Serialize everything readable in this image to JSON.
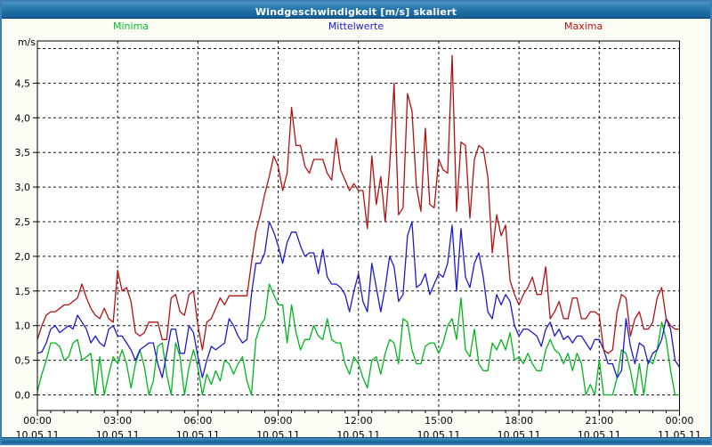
{
  "window": {
    "title": "Windgeschwindigkeit [m/s] skaliert"
  },
  "legend": [
    {
      "label": "Minima",
      "color": "#00c22a"
    },
    {
      "label": "Mittelwerte",
      "color": "#1a1acc"
    },
    {
      "label": "Maxima",
      "color": "#b31212"
    }
  ],
  "axes": {
    "unit_label": "m/s",
    "y_ticks": [
      "0,0",
      "0,5",
      "1,0",
      "1,5",
      "2,0",
      "2,5",
      "3,0",
      "3,5",
      "4,0",
      "4,5"
    ],
    "x_ticks": [
      {
        "time": "00:00",
        "date": "10.05.11"
      },
      {
        "time": "03:00",
        "date": "10.05.11"
      },
      {
        "time": "06:00",
        "date": "10.05.11"
      },
      {
        "time": "09:00",
        "date": "10.05.11"
      },
      {
        "time": "12:00",
        "date": "10.05.11"
      },
      {
        "time": "15:00",
        "date": "10.05.11"
      },
      {
        "time": "18:00",
        "date": "10.05.11"
      },
      {
        "time": "21:00",
        "date": "10.05.11"
      },
      {
        "time": "00:00",
        "date": "11.05.11"
      }
    ]
  },
  "chart_data": {
    "type": "line",
    "title": "Windgeschwindigkeit [m/s] skaliert",
    "ylabel": "m/s",
    "ylim": [
      0,
      5
    ],
    "grid": true,
    "legend_position": "top",
    "x_start": "10.05.11 00:00",
    "x_end": "11.05.11 00:00",
    "x_interval_minutes": 10,
    "x_major_tick_hours": 3,
    "x_minor_tick_minutes": 30,
    "series": [
      {
        "name": "Minima",
        "color": "#00b51e",
        "values": [
          0.05,
          0.3,
          0.5,
          0.75,
          0.75,
          0.7,
          0.5,
          0.55,
          0.75,
          0.8,
          0.5,
          0.55,
          0.6,
          0.0,
          0.55,
          0.0,
          0.3,
          0.55,
          0.45,
          0.65,
          0.45,
          0.1,
          0.45,
          0.65,
          0.4,
          0.0,
          0.2,
          0.7,
          0.75,
          0.3,
          0.0,
          0.75,
          0.55,
          0.0,
          0.4,
          0.65,
          0.4,
          0.0,
          0.3,
          0.15,
          0.35,
          0.2,
          0.5,
          0.45,
          0.3,
          0.45,
          0.55,
          0.2,
          0.0,
          0.8,
          1.0,
          1.1,
          1.6,
          1.45,
          1.3,
          1.3,
          0.75,
          1.3,
          0.9,
          0.65,
          0.8,
          0.8,
          1.0,
          0.85,
          0.8,
          1.1,
          0.8,
          0.75,
          0.75,
          0.45,
          0.3,
          0.55,
          0.45,
          0.25,
          0.1,
          0.5,
          0.55,
          0.3,
          0.6,
          0.8,
          0.75,
          0.45,
          1.1,
          1.05,
          0.65,
          0.45,
          0.45,
          0.7,
          0.75,
          0.75,
          0.6,
          0.75,
          1.0,
          1.1,
          0.8,
          1.4,
          0.65,
          0.55,
          0.95,
          0.45,
          0.35,
          0.35,
          0.75,
          0.65,
          0.8,
          0.65,
          0.9,
          0.5,
          0.55,
          0.45,
          0.6,
          0.45,
          0.35,
          0.35,
          0.65,
          0.8,
          0.65,
          0.6,
          0.45,
          0.6,
          0.35,
          0.6,
          0.45,
          0.0,
          0.15,
          0.0,
          0.5,
          0.0,
          0.0,
          0.0,
          0.25,
          0.65,
          0.6,
          0.35,
          0.0,
          0.45,
          0.0,
          0.5,
          0.45,
          0.65,
          1.05,
          0.8,
          0.35,
          0.0,
          0.0
        ]
      },
      {
        "name": "Mittelwerte",
        "color": "#1a1acc",
        "values": [
          0.6,
          0.62,
          0.75,
          0.95,
          1.0,
          0.9,
          0.95,
          1.0,
          0.95,
          1.15,
          1.05,
          0.95,
          0.75,
          0.85,
          0.75,
          0.7,
          0.95,
          1.0,
          0.85,
          0.85,
          0.75,
          0.65,
          0.5,
          0.65,
          0.7,
          0.75,
          0.75,
          0.45,
          0.25,
          0.6,
          0.95,
          0.95,
          0.6,
          0.6,
          1.0,
          0.9,
          0.55,
          0.25,
          0.5,
          0.7,
          0.65,
          0.7,
          0.75,
          1.1,
          1.0,
          0.85,
          0.75,
          0.8,
          1.45,
          1.9,
          1.9,
          2.05,
          2.5,
          2.35,
          2.15,
          1.9,
          2.2,
          2.35,
          2.35,
          2.15,
          2.0,
          2.05,
          2.05,
          1.75,
          2.1,
          1.7,
          1.6,
          1.6,
          1.55,
          1.45,
          1.2,
          1.5,
          1.75,
          1.35,
          1.2,
          1.9,
          1.55,
          1.2,
          1.55,
          2.0,
          1.85,
          1.35,
          1.45,
          2.3,
          2.5,
          1.55,
          1.6,
          1.75,
          1.45,
          1.6,
          1.75,
          1.7,
          1.9,
          2.45,
          1.5,
          2.4,
          1.7,
          1.55,
          1.9,
          2.05,
          1.7,
          1.2,
          1.1,
          1.45,
          1.3,
          1.45,
          1.35,
          1.0,
          0.85,
          0.95,
          0.95,
          0.9,
          0.85,
          0.7,
          0.95,
          1.05,
          0.85,
          0.95,
          0.8,
          0.85,
          0.75,
          0.85,
          0.85,
          0.75,
          0.65,
          0.8,
          0.8,
          0.65,
          0.45,
          0.45,
          0.25,
          0.35,
          1.1,
          0.7,
          0.45,
          0.75,
          0.7,
          0.45,
          0.6,
          0.65,
          0.8,
          1.1,
          0.95,
          0.5,
          0.4
        ]
      },
      {
        "name": "Maxima",
        "color": "#b31111",
        "values": [
          0.8,
          1.0,
          1.15,
          1.2,
          1.2,
          1.25,
          1.3,
          1.3,
          1.35,
          1.4,
          1.6,
          1.4,
          1.25,
          1.15,
          1.1,
          1.25,
          1.1,
          1.05,
          1.8,
          1.5,
          1.55,
          1.35,
          0.9,
          0.85,
          0.9,
          1.05,
          1.05,
          1.05,
          0.8,
          0.8,
          1.4,
          1.45,
          1.2,
          1.15,
          1.45,
          1.5,
          1.0,
          0.65,
          1.05,
          1.1,
          1.25,
          1.4,
          1.3,
          1.43,
          1.43,
          1.43,
          1.43,
          1.43,
          1.9,
          2.35,
          2.6,
          2.9,
          3.15,
          3.45,
          3.3,
          2.95,
          3.2,
          4.15,
          3.6,
          3.6,
          3.3,
          3.2,
          3.4,
          3.4,
          3.4,
          3.2,
          3.1,
          3.7,
          3.25,
          3.1,
          2.95,
          3.05,
          2.95,
          2.95,
          2.4,
          3.45,
          2.75,
          3.15,
          2.5,
          3.3,
          4.5,
          2.6,
          2.7,
          4.35,
          4.1,
          3.0,
          2.65,
          3.85,
          2.75,
          2.7,
          3.4,
          3.25,
          3.2,
          4.9,
          2.65,
          3.65,
          3.6,
          2.55,
          3.4,
          3.6,
          3.55,
          3.15,
          2.05,
          2.6,
          2.3,
          2.45,
          1.65,
          1.45,
          1.3,
          1.45,
          1.55,
          1.7,
          1.45,
          1.45,
          1.85,
          1.1,
          1.2,
          1.35,
          1.1,
          1.1,
          1.4,
          1.4,
          1.1,
          1.1,
          1.2,
          1.2,
          1.15,
          0.65,
          0.6,
          0.65,
          1.2,
          1.45,
          1.4,
          0.85,
          1.1,
          1.2,
          0.95,
          0.95,
          1.05,
          1.4,
          1.55,
          1.1,
          1.0,
          0.95,
          0.95
        ]
      }
    ]
  }
}
